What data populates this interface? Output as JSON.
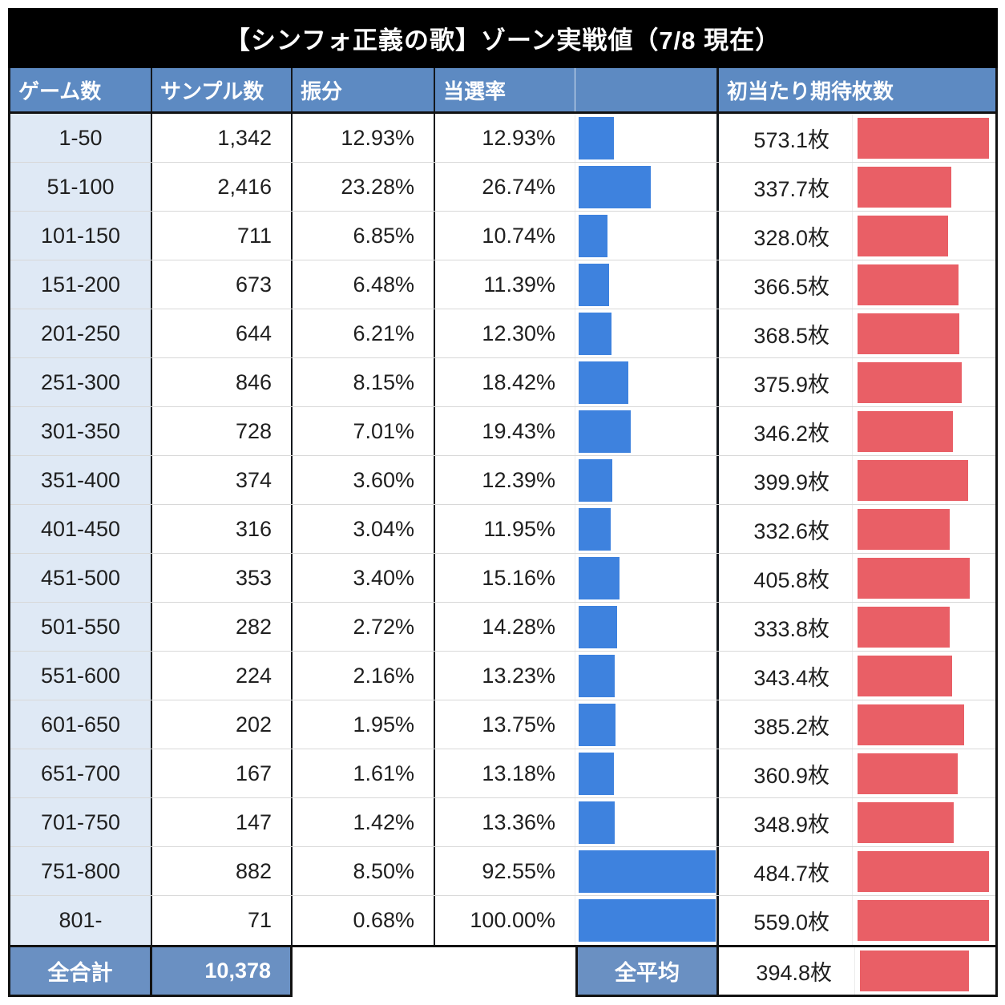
{
  "title": "【シンフォ正義の歌】ゾーン実戦値（7/8 現在）",
  "header": {
    "game": "ゲーム数",
    "sample": "サンプル数",
    "dist": "振分",
    "win": "当選率",
    "blank": "",
    "coins": "初当たり期待枚数"
  },
  "footer": {
    "total_label": "全合計",
    "total_value": "10,378",
    "avg_label": "全平均",
    "avg_value": "394.8枚",
    "avg_num": 394.8
  },
  "colors": {
    "title_bg": "#000000",
    "header_bg": "#5d8ac2",
    "footer_bg": "#6a90c2",
    "row_label_bg": "#dfe9f5",
    "win_bar": "#3e82de",
    "coins_bar": "#e95f66",
    "border_dark": "#121212",
    "row_divider": "#d8d8d8"
  },
  "chart_data": {
    "type": "table",
    "title": "【シンフォ正義の歌】ゾーン実戦値（7/8 現在）",
    "columns": [
      "ゲーム数",
      "サンプル数",
      "振分",
      "当選率",
      "当選率バー",
      "初当たり期待枚数"
    ],
    "legend_position": "none",
    "grid": true,
    "bar_series": [
      {
        "name": "当選率",
        "type": "bar",
        "color": "#3e82de",
        "unit": "%"
      },
      {
        "name": "初当たり期待枚数",
        "type": "bar",
        "color": "#e95f66",
        "unit": "枚"
      }
    ],
    "rows": [
      {
        "game": "1-50",
        "sample": "1,342",
        "dist": "12.93%",
        "win": "12.93%",
        "win_num": 12.93,
        "coins": "573.1枚",
        "coins_num": 573.1
      },
      {
        "game": "51-100",
        "sample": "2,416",
        "dist": "23.28%",
        "win": "26.74%",
        "win_num": 26.74,
        "coins": "337.7枚",
        "coins_num": 337.7
      },
      {
        "game": "101-150",
        "sample": "711",
        "dist": "6.85%",
        "win": "10.74%",
        "win_num": 10.74,
        "coins": "328.0枚",
        "coins_num": 328.0
      },
      {
        "game": "151-200",
        "sample": "673",
        "dist": "6.48%",
        "win": "11.39%",
        "win_num": 11.39,
        "coins": "366.5枚",
        "coins_num": 366.5
      },
      {
        "game": "201-250",
        "sample": "644",
        "dist": "6.21%",
        "win": "12.30%",
        "win_num": 12.3,
        "coins": "368.5枚",
        "coins_num": 368.5
      },
      {
        "game": "251-300",
        "sample": "846",
        "dist": "8.15%",
        "win": "18.42%",
        "win_num": 18.42,
        "coins": "375.9枚",
        "coins_num": 375.9
      },
      {
        "game": "301-350",
        "sample": "728",
        "dist": "7.01%",
        "win": "19.43%",
        "win_num": 19.43,
        "coins": "346.2枚",
        "coins_num": 346.2
      },
      {
        "game": "351-400",
        "sample": "374",
        "dist": "3.60%",
        "win": "12.39%",
        "win_num": 12.39,
        "coins": "399.9枚",
        "coins_num": 399.9
      },
      {
        "game": "401-450",
        "sample": "316",
        "dist": "3.04%",
        "win": "11.95%",
        "win_num": 11.95,
        "coins": "332.6枚",
        "coins_num": 332.6
      },
      {
        "game": "451-500",
        "sample": "353",
        "dist": "3.40%",
        "win": "15.16%",
        "win_num": 15.16,
        "coins": "405.8枚",
        "coins_num": 405.8
      },
      {
        "game": "501-550",
        "sample": "282",
        "dist": "2.72%",
        "win": "14.28%",
        "win_num": 14.28,
        "coins": "333.8枚",
        "coins_num": 333.8
      },
      {
        "game": "551-600",
        "sample": "224",
        "dist": "2.16%",
        "win": "13.23%",
        "win_num": 13.23,
        "coins": "343.4枚",
        "coins_num": 343.4
      },
      {
        "game": "601-650",
        "sample": "202",
        "dist": "1.95%",
        "win": "13.75%",
        "win_num": 13.75,
        "coins": "385.2枚",
        "coins_num": 385.2
      },
      {
        "game": "651-700",
        "sample": "167",
        "dist": "1.61%",
        "win": "13.18%",
        "win_num": 13.18,
        "coins": "360.9枚",
        "coins_num": 360.9
      },
      {
        "game": "701-750",
        "sample": "147",
        "dist": "1.42%",
        "win": "13.36%",
        "win_num": 13.36,
        "coins": "348.9枚",
        "coins_num": 348.9
      },
      {
        "game": "751-800",
        "sample": "882",
        "dist": "8.50%",
        "win": "92.55%",
        "win_num": 92.55,
        "coins": "484.7枚",
        "coins_num": 484.7
      },
      {
        "game": "801-",
        "sample": "71",
        "dist": "0.68%",
        "win": "100.00%",
        "win_num": 100.0,
        "coins": "559.0枚",
        "coins_num": 559.0
      }
    ],
    "totals": {
      "sample_total": "10,378",
      "coins_average": "394.8枚"
    }
  }
}
